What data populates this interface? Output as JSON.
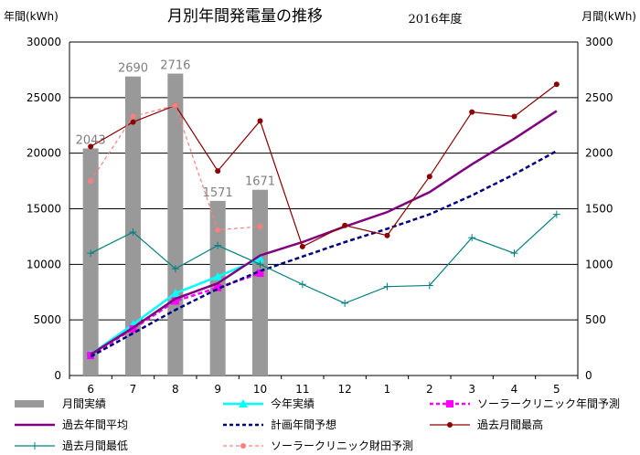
{
  "chart_data": {
    "type": "bar+line",
    "title": "月別年間発電量の推移",
    "subtitle": "2016年度",
    "ylabel_left": "年間(kWh)",
    "ylabel_right": "月間(kWh)",
    "categories": [
      "6",
      "7",
      "8",
      "9",
      "10",
      "11",
      "12",
      "1",
      "2",
      "3",
      "4",
      "5"
    ],
    "ylim_left": [
      0,
      30000
    ],
    "ylim_right": [
      0,
      3000
    ],
    "yticks_left": [
      "0",
      "5000",
      "10000",
      "15000",
      "20000",
      "25000",
      "30000"
    ],
    "yticks_right": [
      "0",
      "500",
      "1000",
      "1500",
      "2000",
      "2500",
      "3000"
    ],
    "grid": true,
    "legend_position": "bottom",
    "series": [
      {
        "name": "月間実績",
        "kind": "bar",
        "axis": "right",
        "color": "#999999",
        "values": [
          2043,
          2690,
          2716,
          1571,
          1671,
          null,
          null,
          null,
          null,
          null,
          null,
          null
        ],
        "labels": [
          "2043",
          "2690",
          "2716",
          "1571",
          "1671"
        ]
      },
      {
        "name": "今年実績",
        "kind": "line",
        "axis": "left",
        "color": "#00ffff",
        "marker": "triangle",
        "values": [
          1900,
          4600,
          7400,
          8900,
          10500,
          null,
          null,
          null,
          null,
          null,
          null,
          null
        ]
      },
      {
        "name": "ソーラークリニック年間予測",
        "kind": "line",
        "axis": "left",
        "color": "#ff00ff",
        "marker": "square",
        "dash": true,
        "values": [
          1800,
          4200,
          6700,
          7900,
          9200,
          null,
          null,
          null,
          null,
          null,
          null,
          null
        ]
      },
      {
        "name": "過去年間平均",
        "kind": "line",
        "axis": "left",
        "color": "#800080",
        "marker": "none",
        "values": [
          1900,
          4300,
          6900,
          8300,
          10800,
          12000,
          13400,
          14700,
          16500,
          19000,
          21300,
          23800
        ]
      },
      {
        "name": "計画年間予想",
        "kind": "line",
        "axis": "left",
        "color": "#000080",
        "marker": "none",
        "dash": true,
        "values": [
          1700,
          3800,
          5900,
          7800,
          9400,
          10700,
          12000,
          13200,
          14500,
          16200,
          18100,
          20200
        ]
      },
      {
        "name": "過去月間最高",
        "kind": "line",
        "axis": "right",
        "color": "#8b0000",
        "marker": "circle",
        "values": [
          2060,
          2280,
          2430,
          1840,
          2290,
          1160,
          1350,
          1260,
          1790,
          2370,
          2330,
          2620
        ]
      },
      {
        "name": "過去月間最低",
        "kind": "line",
        "axis": "right",
        "color": "#008080",
        "marker": "plus",
        "values": [
          1100,
          1290,
          960,
          1170,
          1000,
          820,
          650,
          800,
          810,
          1240,
          1100,
          1450
        ]
      },
      {
        "name": "ソーラークリニック財田予測",
        "kind": "line",
        "axis": "right",
        "color": "#ff7f7f",
        "marker": "circle",
        "dash": true,
        "values": [
          1750,
          2330,
          2430,
          1310,
          1340,
          null,
          null,
          null,
          null,
          null,
          null,
          null
        ]
      }
    ]
  }
}
